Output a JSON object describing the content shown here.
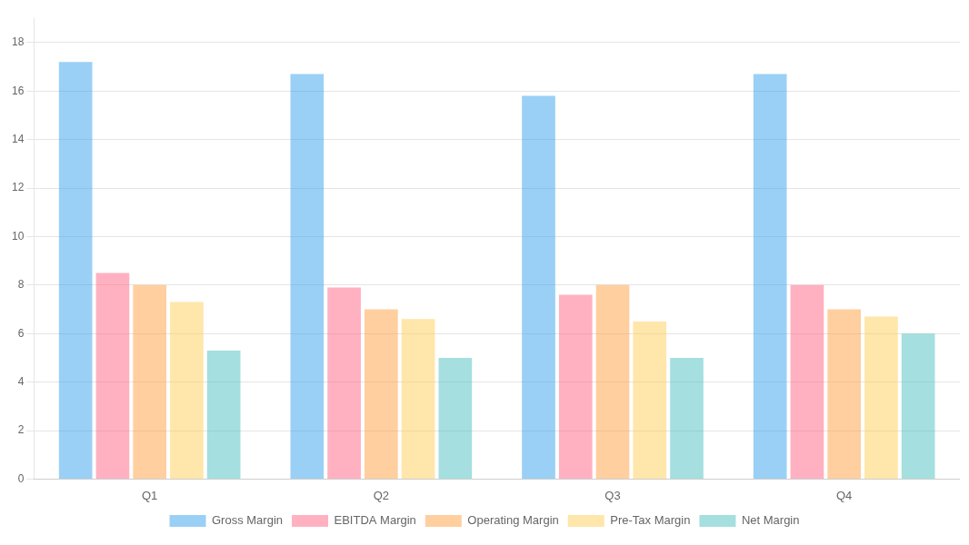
{
  "chart_data": {
    "type": "bar",
    "categories": [
      "Q1",
      "Q2",
      "Q3",
      "Q4"
    ],
    "series": [
      {
        "name": "Gross Margin",
        "values": [
          17.2,
          16.7,
          15.8,
          16.7
        ]
      },
      {
        "name": "EBITDA Margin",
        "values": [
          8.5,
          7.9,
          7.6,
          8.0
        ]
      },
      {
        "name": "Operating Margin",
        "values": [
          8.0,
          7.0,
          8.0,
          7.0
        ]
      },
      {
        "name": "Pre-Tax Margin",
        "values": [
          7.3,
          6.6,
          6.5,
          6.7
        ]
      },
      {
        "name": "Net Margin",
        "values": [
          5.3,
          5.0,
          5.0,
          6.0
        ]
      }
    ],
    "ylim": [
      0,
      19
    ],
    "yticks": [
      0,
      2,
      4,
      6,
      8,
      10,
      12,
      14,
      16,
      18
    ],
    "grid": true,
    "legend": "bottom"
  }
}
